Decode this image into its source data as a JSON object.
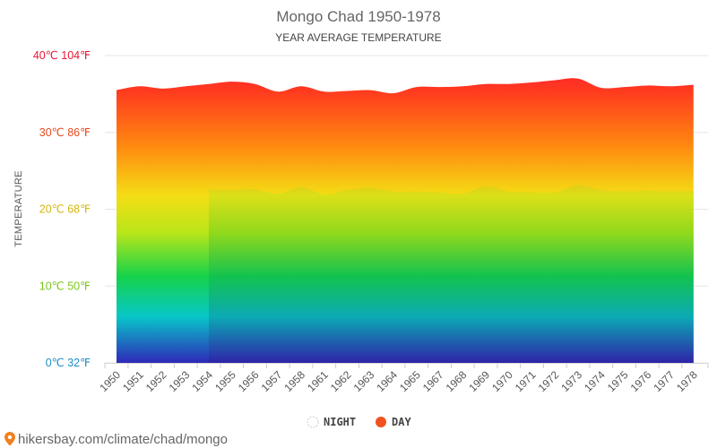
{
  "chart_data": {
    "type": "area",
    "title": "Mongo Chad 1950-1978",
    "subtitle": "YEAR AVERAGE TEMPERATURE",
    "ylabel": "TEMPERATURE",
    "ylim": [
      0,
      40
    ],
    "y_ticks": [
      {
        "value": 40,
        "label": "40℃ 104℉",
        "color": "#e8173a"
      },
      {
        "value": 30,
        "label": "30℃ 86℉",
        "color": "#e8491d"
      },
      {
        "value": 20,
        "label": "20℃ 68℉",
        "color": "#d4b70e"
      },
      {
        "value": 10,
        "label": "10℃ 50℉",
        "color": "#7cc61e"
      },
      {
        "value": 0,
        "label": "0℃ 32℉",
        "color": "#1c8ec9"
      }
    ],
    "categories": [
      "1950",
      "1951",
      "1952",
      "1953",
      "1954",
      "1955",
      "1956",
      "1957",
      "1958",
      "1961",
      "1962",
      "1963",
      "1964",
      "1965",
      "1967",
      "1968",
      "1969",
      "1970",
      "1971",
      "1972",
      "1973",
      "1974",
      "1975",
      "1976",
      "1977",
      "1978"
    ],
    "series": [
      {
        "name": "NIGHT",
        "values": [
          null,
          null,
          null,
          null,
          22.6,
          22.5,
          22.6,
          22.0,
          22.9,
          21.9,
          22.5,
          22.8,
          22.3,
          22.3,
          22.2,
          22.0,
          23.0,
          22.3,
          22.2,
          22.2,
          23.1,
          22.5,
          22.3,
          22.4,
          22.3,
          22.4
        ]
      },
      {
        "name": "DAY",
        "values": [
          35.5,
          36.0,
          35.7,
          36.0,
          36.3,
          36.6,
          36.3,
          35.3,
          36.0,
          35.3,
          35.4,
          35.5,
          35.1,
          35.9,
          35.9,
          36.0,
          36.3,
          36.3,
          36.5,
          36.8,
          37.0,
          35.8,
          35.9,
          36.1,
          36.0,
          36.2
        ]
      }
    ],
    "legend": {
      "position": "bottom",
      "items": [
        {
          "label": "NIGHT",
          "color": "#e0e0e0"
        },
        {
          "label": "DAY",
          "color": "#f1521f"
        }
      ]
    }
  },
  "footer": {
    "link_text": "hikersbay.com/climate/chad/mongo",
    "pin_color": "#f0801f"
  }
}
